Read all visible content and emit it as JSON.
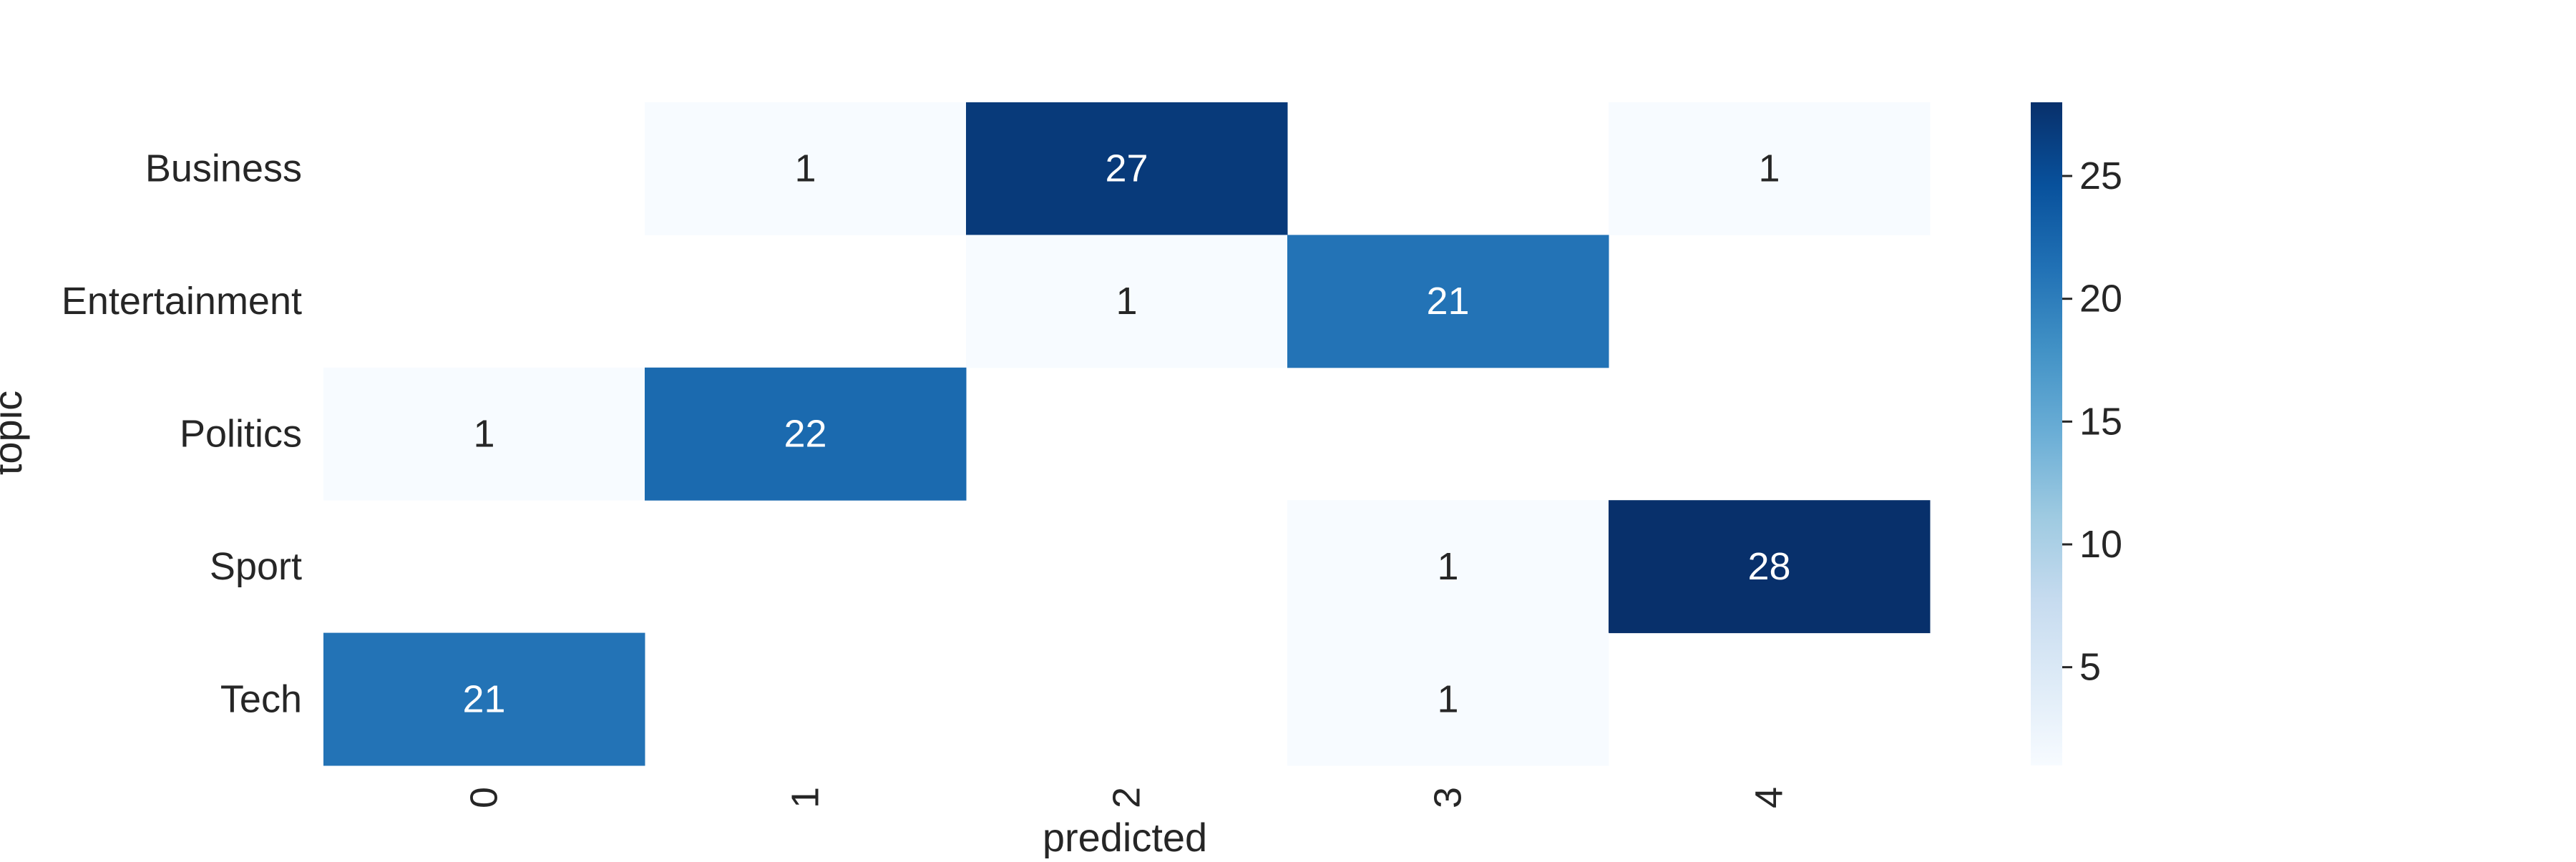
{
  "chart_data": {
    "type": "heatmap",
    "title": "",
    "xlabel": "predicted",
    "ylabel": "topic",
    "x_categories": [
      "0",
      "1",
      "2",
      "3",
      "4"
    ],
    "y_categories": [
      "Business",
      "Entertainment",
      "Politics",
      "Sport",
      "Tech"
    ],
    "values": [
      [
        0,
        1,
        27,
        0,
        1
      ],
      [
        0,
        0,
        1,
        21,
        0
      ],
      [
        1,
        22,
        0,
        0,
        0
      ],
      [
        0,
        0,
        0,
        1,
        28
      ],
      [
        21,
        0,
        0,
        1,
        0
      ]
    ],
    "annotate_zero": false,
    "colormap": "Blues",
    "color_range": [
      1,
      28
    ],
    "colorbar_ticks": [
      "5",
      "10",
      "15",
      "20",
      "25"
    ],
    "colors": {
      "low": "#f7fbff",
      "high": "#08306b",
      "annot_dark": "#262626",
      "annot_light": "#ffffff"
    }
  }
}
